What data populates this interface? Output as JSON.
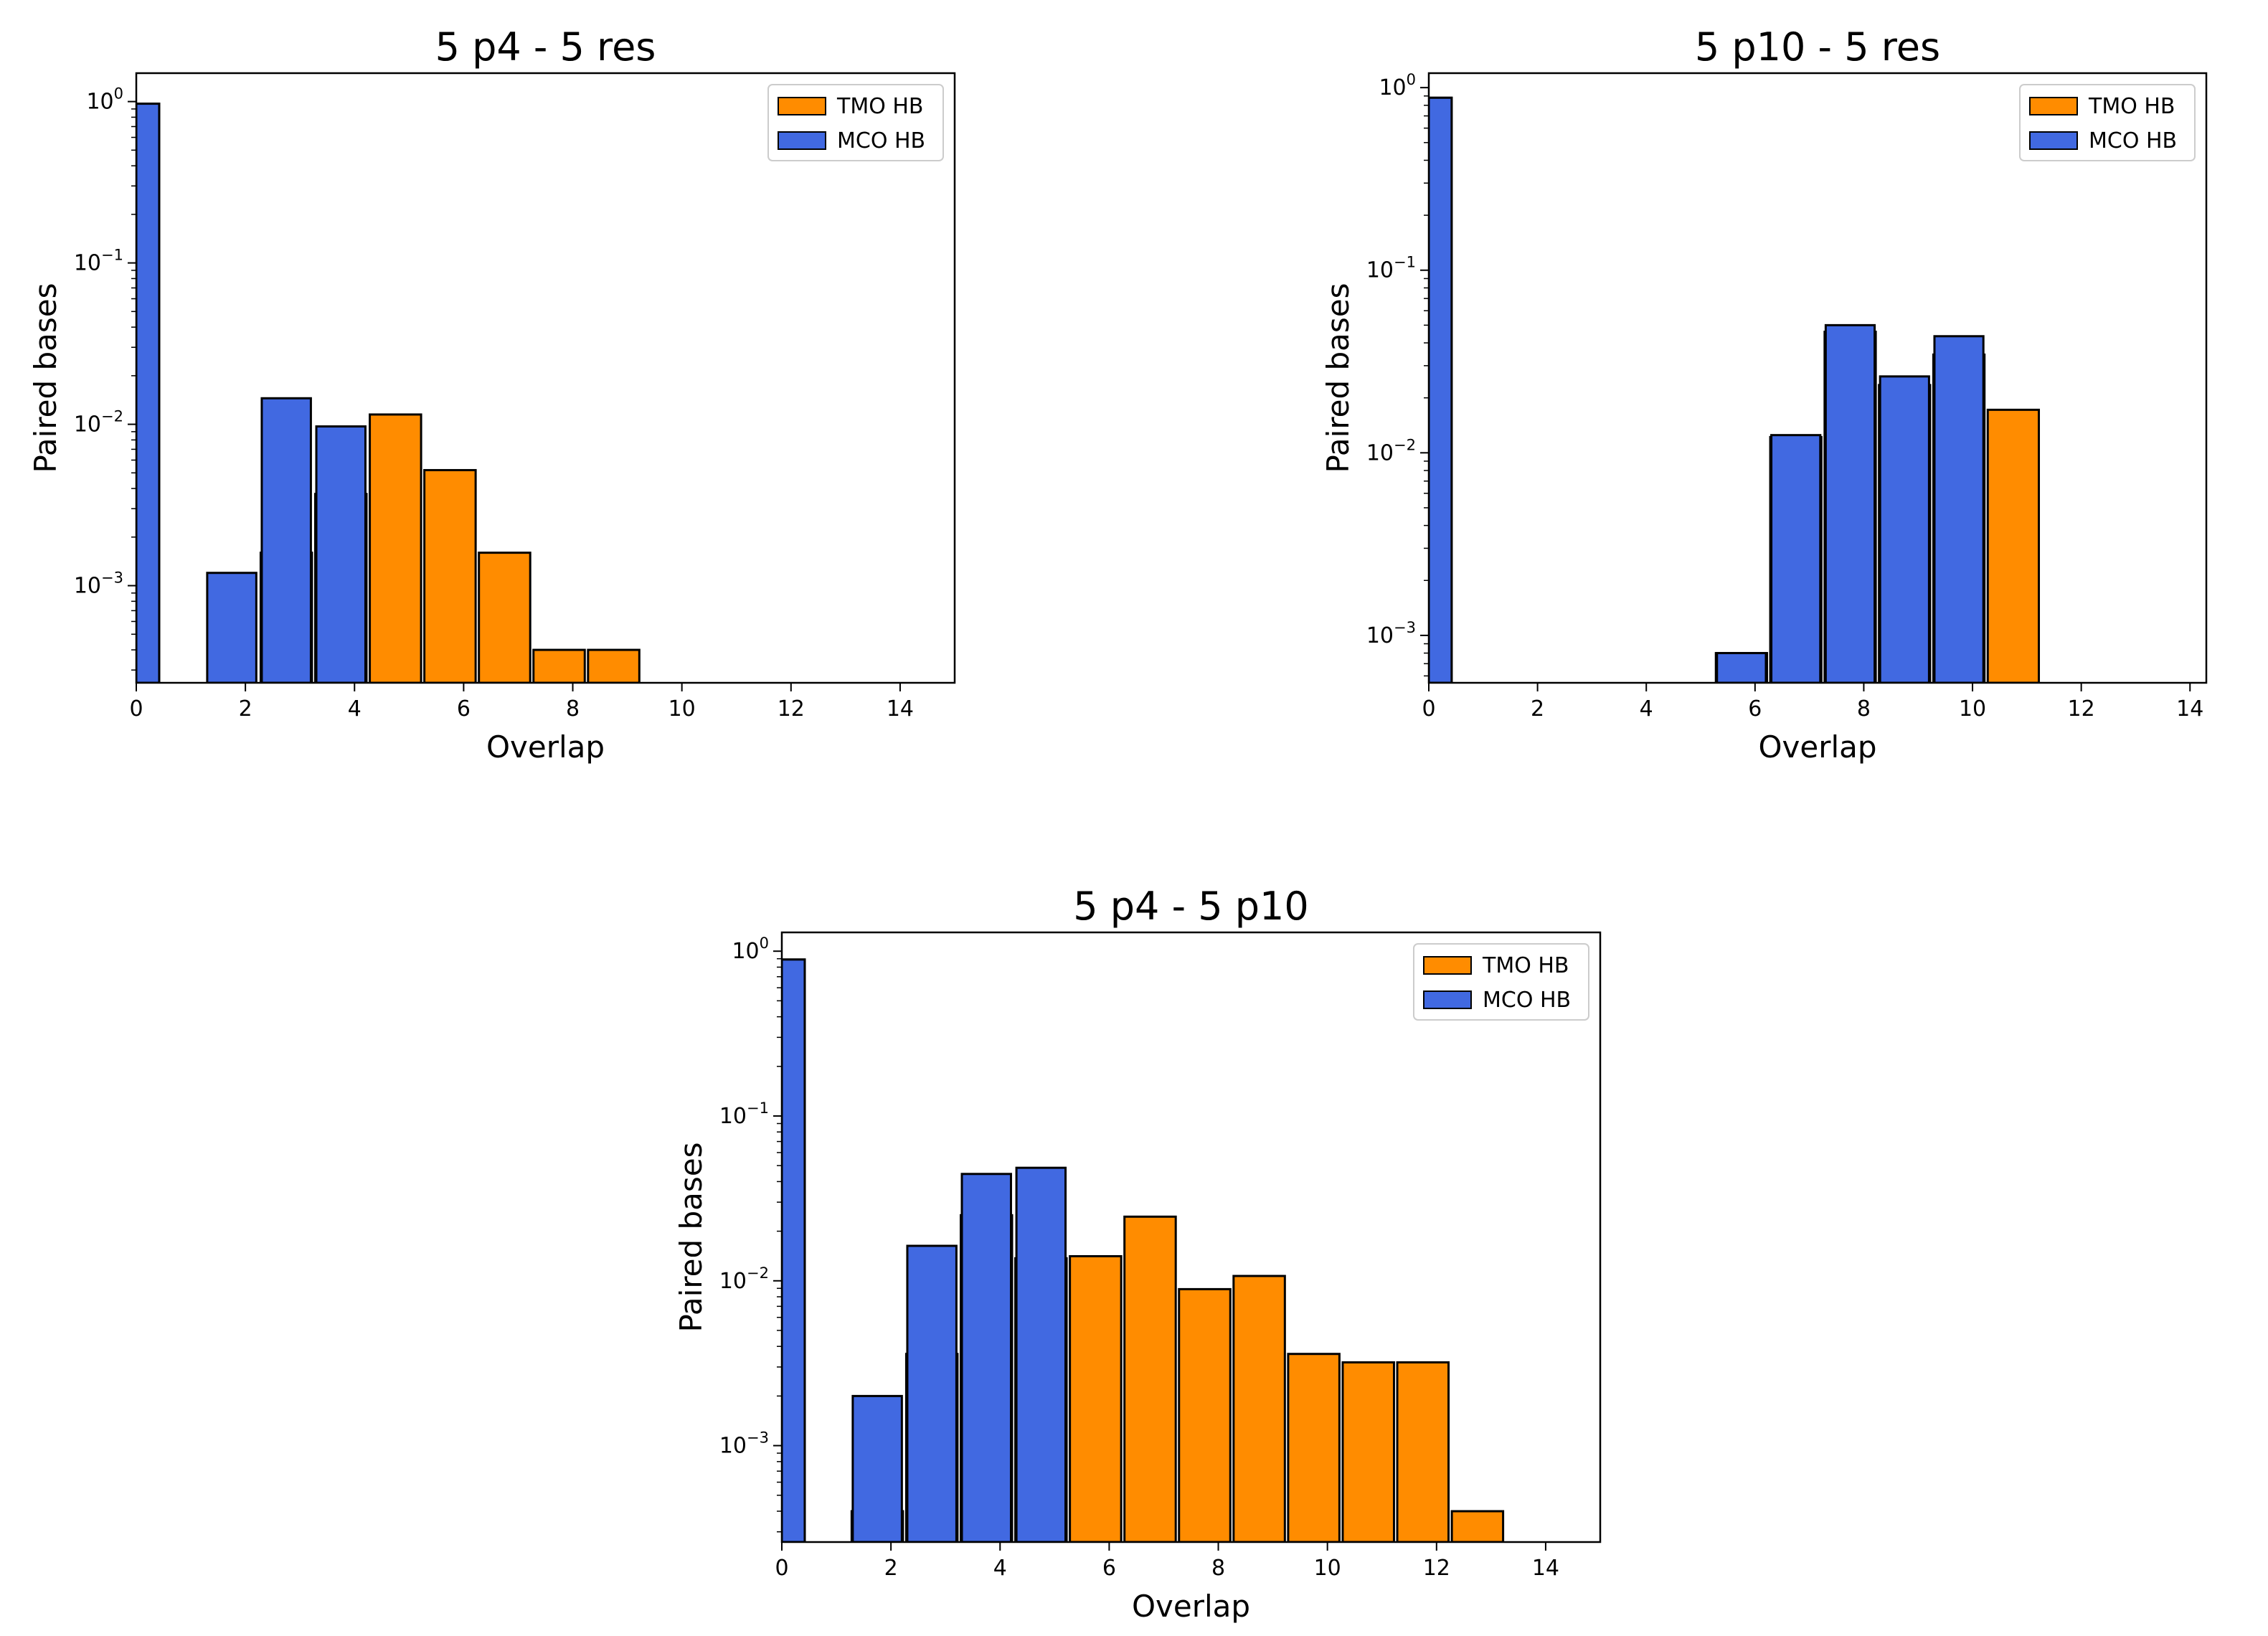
{
  "figure_colors": {
    "tmo": "#ff8c00",
    "mco": "#4169e1",
    "edge": "#000000"
  },
  "chart_data": [
    {
      "type": "bar",
      "title": "5 p4 - 5 res",
      "xlabel": "Overlap",
      "ylabel": "Paired bases",
      "yscale": "log",
      "xlim": [
        0,
        15
      ],
      "ylim": [
        0.00025,
        1.5
      ],
      "xticks": [
        "0",
        "2",
        "4",
        "6",
        "8",
        "10",
        "12",
        "14"
      ],
      "legend": {
        "placement": "top-right",
        "entries": [
          "TMO HB",
          "MCO HB"
        ]
      },
      "series": [
        {
          "name": "TMO HB",
          "color": "#ff8c00",
          "x": [
            0,
            3,
            4,
            5,
            6,
            7,
            8,
            9
          ],
          "values": [
            0.97,
            0.0016,
            0.0037,
            0.0115,
            0.0052,
            0.0016,
            0.0004,
            0.0004
          ]
        },
        {
          "name": "MCO HB",
          "color": "#4169e1",
          "x": [
            0,
            2,
            3,
            4
          ],
          "values": [
            0.97,
            0.0012,
            0.0145,
            0.0097
          ]
        }
      ]
    },
    {
      "type": "bar",
      "title": "5 p10 - 5 res",
      "xlabel": "Overlap",
      "ylabel": "Paired bases",
      "yscale": "log",
      "xlim": [
        0,
        14.3
      ],
      "ylim": [
        0.00055,
        1.2
      ],
      "xticks": [
        "0",
        "2",
        "4",
        "6",
        "8",
        "10",
        "12",
        "14"
      ],
      "legend": {
        "placement": "top-right",
        "entries": [
          "TMO HB",
          "MCO HB"
        ]
      },
      "series": [
        {
          "name": "TMO HB",
          "color": "#ff8c00",
          "x": [
            0,
            6,
            7,
            8,
            9,
            10,
            11
          ],
          "values": [
            0.88,
            0.0008,
            0.0122,
            0.046,
            0.0235,
            0.0345,
            0.0172
          ]
        },
        {
          "name": "MCO HB",
          "color": "#4169e1",
          "x": [
            0,
            6,
            7,
            8,
            9,
            10
          ],
          "values": [
            0.88,
            0.0008,
            0.0125,
            0.05,
            0.0262,
            0.0435
          ]
        }
      ]
    },
    {
      "type": "bar",
      "title": "5 p4 - 5 p10",
      "xlabel": "Overlap",
      "ylabel": "Paired bases",
      "yscale": "log",
      "xlim": [
        0,
        15
      ],
      "ylim": [
        0.00026,
        1.3
      ],
      "xticks": [
        "0",
        "2",
        "4",
        "6",
        "8",
        "10",
        "12",
        "14"
      ],
      "legend": {
        "placement": "top-right",
        "entries": [
          "TMO HB",
          "MCO HB"
        ]
      },
      "series": [
        {
          "name": "TMO HB",
          "color": "#ff8c00",
          "x": [
            0,
            2,
            3,
            4,
            5,
            6,
            7,
            8,
            9,
            10,
            11,
            12,
            13
          ],
          "values": [
            0.89,
            0.0004,
            0.0036,
            0.025,
            0.0137,
            0.0141,
            0.0245,
            0.0089,
            0.0107,
            0.0036,
            0.0032,
            0.0032,
            0.0004
          ]
        },
        {
          "name": "MCO HB",
          "color": "#4169e1",
          "x": [
            0,
            2,
            3,
            4,
            5
          ],
          "values": [
            0.89,
            0.002,
            0.0163,
            0.0445,
            0.0485
          ]
        }
      ]
    }
  ]
}
